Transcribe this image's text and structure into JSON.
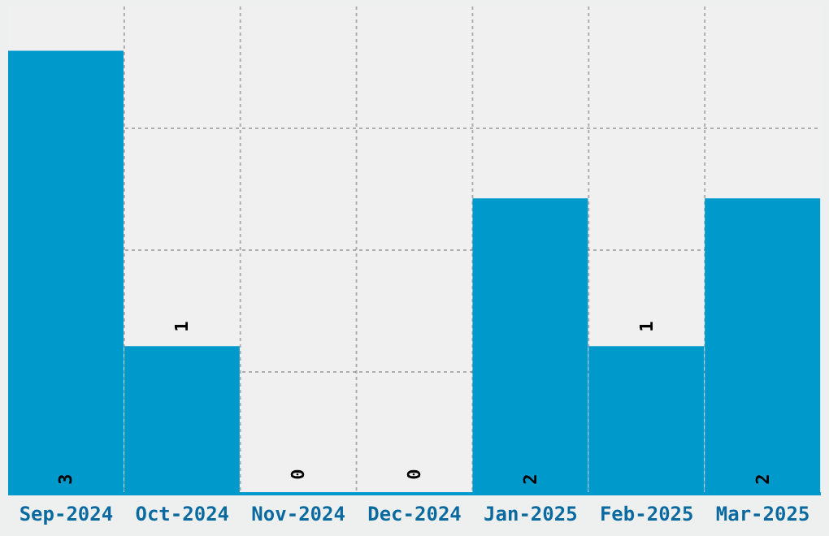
{
  "chart_data": {
    "type": "bar",
    "categories": [
      "Sep-2024",
      "Oct-2024",
      "Nov-2024",
      "Dec-2024",
      "Jan-2025",
      "Feb-2025",
      "Mar-2025"
    ],
    "values": [
      3,
      1,
      0,
      0,
      2,
      1,
      2
    ],
    "color": "#0099cc",
    "data_labels": true,
    "ylim": [
      0,
      3.3
    ],
    "yticks": [
      {
        "value": 0,
        "label": null
      },
      {
        "value": 0.825,
        "label": null
      },
      {
        "value": 1.65,
        "label": null
      },
      {
        "value": 2.475,
        "label": null
      }
    ],
    "grid": true,
    "tick_labels": "x"
  }
}
